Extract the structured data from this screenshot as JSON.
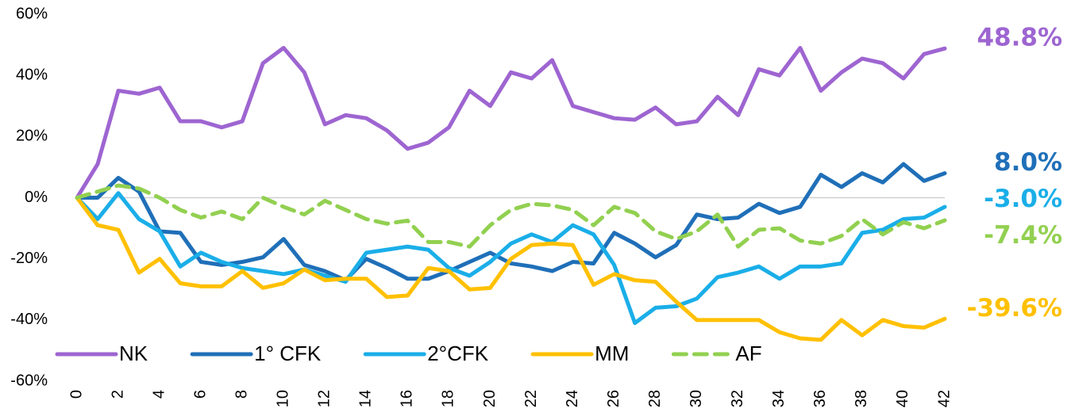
{
  "chart_data": {
    "type": "line",
    "x": [
      0,
      1,
      2,
      3,
      4,
      5,
      6,
      7,
      8,
      9,
      10,
      11,
      12,
      13,
      14,
      15,
      16,
      17,
      18,
      19,
      20,
      21,
      22,
      23,
      24,
      25,
      26,
      27,
      28,
      29,
      30,
      31,
      32,
      33,
      34,
      35,
      36,
      37,
      38,
      39,
      40,
      41,
      42
    ],
    "xlim": [
      0,
      42
    ],
    "xticks": [
      0,
      2,
      4,
      6,
      8,
      10,
      12,
      14,
      16,
      18,
      20,
      22,
      24,
      26,
      28,
      30,
      32,
      34,
      36,
      38,
      40,
      42
    ],
    "ylim": [
      -60,
      60
    ],
    "yticks": [
      {
        "value": -60,
        "label": "-60%"
      },
      {
        "value": -40,
        "label": "-40%"
      },
      {
        "value": -20,
        "label": "-20%"
      },
      {
        "value": 0,
        "label": "0%"
      },
      {
        "value": 20,
        "label": "20%"
      },
      {
        "value": 40,
        "label": "40%"
      },
      {
        "value": 60,
        "label": "60%"
      }
    ],
    "grid": false,
    "legend": "lower left",
    "series": [
      {
        "name": "NK",
        "color": "#9e65d1",
        "dash": false,
        "values": [
          0,
          11,
          35,
          34,
          36,
          25,
          25,
          23,
          25,
          44,
          49,
          41,
          24,
          27,
          26,
          22,
          16,
          18,
          23,
          35,
          30,
          41,
          39,
          45,
          30,
          28,
          26,
          25.5,
          29.5,
          24,
          25,
          33,
          27,
          42,
          40,
          49,
          35,
          41,
          45.5,
          44,
          39,
          47,
          48.8
        ],
        "value_labels": [
          null,
          null,
          null,
          null,
          null,
          null,
          null,
          null,
          null,
          null,
          null,
          null,
          null,
          null,
          null,
          null,
          null,
          null,
          null,
          null,
          null,
          null,
          null,
          null,
          null,
          null,
          null,
          null,
          null,
          null,
          null,
          null,
          null,
          null,
          null,
          null,
          null,
          null,
          null,
          null,
          null,
          null,
          "48.8%"
        ]
      },
      {
        "name": "1° CFK",
        "color": "#1f6fb8",
        "dash": false,
        "values": [
          0,
          0,
          6.5,
          2,
          -11,
          -11.5,
          -21,
          -22,
          -21,
          -19.5,
          -13.5,
          -22,
          -24,
          -27,
          -20,
          -23,
          -26.5,
          -26.5,
          -24,
          -21,
          -18,
          -21.5,
          -22.5,
          -24,
          -21,
          -21.5,
          -11.5,
          -15,
          -19.5,
          -15.5,
          -5.5,
          -7,
          -6.5,
          -2,
          -5,
          -3,
          7.5,
          3.5,
          8,
          5,
          11,
          5.5,
          8.0
        ],
        "value_labels": [
          null,
          null,
          null,
          null,
          null,
          null,
          null,
          null,
          null,
          null,
          null,
          null,
          null,
          null,
          null,
          null,
          null,
          null,
          null,
          null,
          null,
          null,
          null,
          null,
          null,
          null,
          null,
          null,
          null,
          null,
          null,
          null,
          null,
          null,
          null,
          null,
          null,
          null,
          null,
          null,
          null,
          null,
          "8.0%"
        ]
      },
      {
        "name": "2°CFK",
        "color": "#1aaee8",
        "dash": false,
        "values": [
          0,
          -7,
          1.5,
          -7,
          -11,
          -22.5,
          -18,
          -21,
          -23,
          -24,
          -25,
          -23.5,
          -25.5,
          -27.5,
          -18,
          -17,
          -16,
          -17,
          -23,
          -25.5,
          -21,
          -15,
          -12,
          -14.5,
          -9,
          -12,
          -22,
          -41,
          -36,
          -35.5,
          -33,
          -26,
          -24.5,
          -22.5,
          -26.5,
          -22.5,
          -22.5,
          -21.5,
          -11.5,
          -10.5,
          -7,
          -6.5,
          -3.0
        ],
        "value_labels": [
          null,
          null,
          null,
          null,
          null,
          null,
          null,
          null,
          null,
          null,
          null,
          null,
          null,
          null,
          null,
          null,
          null,
          null,
          null,
          null,
          null,
          null,
          null,
          null,
          null,
          null,
          null,
          null,
          null,
          null,
          null,
          null,
          null,
          null,
          null,
          null,
          null,
          null,
          null,
          null,
          null,
          null,
          "-3.0%"
        ]
      },
      {
        "name": "MM",
        "color": "#ffc000",
        "dash": false,
        "values": [
          0,
          -9,
          -10.5,
          -24.5,
          -20,
          -28,
          -29,
          -29,
          -24,
          -29.5,
          -28,
          -23.5,
          -27,
          -26.5,
          -26.5,
          -32.5,
          -32,
          -23,
          -24,
          -30,
          -29.5,
          -20,
          -15.5,
          -15,
          -15.5,
          -28.5,
          -25,
          -27,
          -27.5,
          -34,
          -40,
          -40,
          -40,
          -40,
          -44,
          -46,
          -46.5,
          -40,
          -45,
          -40,
          -42,
          -42.5,
          -39.6
        ],
        "value_labels": [
          null,
          null,
          null,
          null,
          null,
          null,
          null,
          null,
          null,
          null,
          null,
          null,
          null,
          null,
          null,
          null,
          null,
          null,
          null,
          null,
          null,
          null,
          null,
          null,
          null,
          null,
          null,
          null,
          null,
          null,
          null,
          null,
          null,
          null,
          null,
          null,
          null,
          null,
          null,
          null,
          null,
          null,
          "-39.6%"
        ]
      },
      {
        "name": "AF",
        "color": "#92d050",
        "dash": true,
        "values": [
          0,
          2,
          4,
          3,
          0,
          -4,
          -6.5,
          -4.5,
          -7,
          0,
          -3,
          -5.5,
          -1,
          -4,
          -7,
          -8.5,
          -7.5,
          -14.5,
          -14.5,
          -16,
          -9,
          -4,
          -2,
          -2.5,
          -4,
          -9,
          -3,
          -5,
          -11,
          -13.5,
          -11,
          -5.5,
          -16,
          -10.5,
          -10,
          -14,
          -15,
          -12.5,
          -7,
          -12,
          -8,
          -10,
          -7.4
        ],
        "value_labels": [
          null,
          null,
          null,
          null,
          null,
          null,
          null,
          null,
          null,
          null,
          null,
          null,
          null,
          null,
          null,
          null,
          null,
          null,
          null,
          null,
          null,
          null,
          null,
          null,
          null,
          null,
          null,
          null,
          null,
          null,
          null,
          null,
          null,
          null,
          null,
          null,
          null,
          null,
          null,
          null,
          null,
          null,
          "-7.4%"
        ]
      }
    ]
  }
}
